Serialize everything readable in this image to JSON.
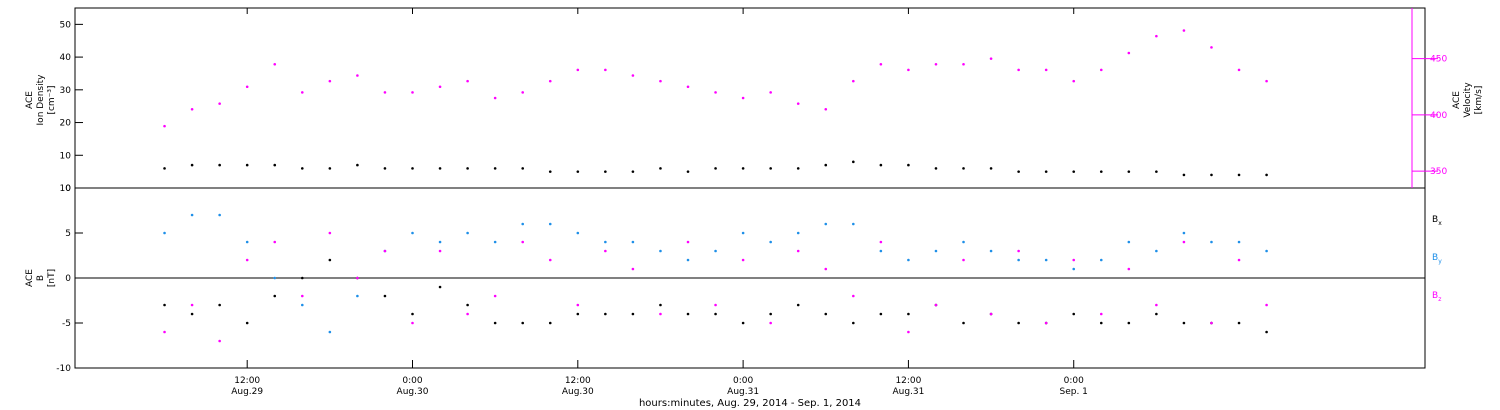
{
  "chart_data": [
    {
      "type": "scatter",
      "panel": "top",
      "left_axis": {
        "label_lines": [
          "ACE",
          "Ion Density",
          "[cm⁻³]"
        ],
        "ylim": [
          0,
          55
        ],
        "ticks": [
          0,
          10,
          20,
          30,
          40,
          50
        ],
        "color": "#000000"
      },
      "right_axis": {
        "label_lines": [
          "ACE",
          "Velocity",
          "[km/s]"
        ],
        "ylim": [
          335,
          495
        ],
        "ticks": [
          350,
          400,
          450
        ],
        "color": "#ff00ff"
      },
      "series": [
        {
          "axis": "left",
          "color": "#000000",
          "x_hours": [
            0,
            2,
            4,
            6,
            8,
            10,
            12,
            14,
            16,
            18,
            20,
            22,
            24,
            26,
            28,
            30,
            32,
            34,
            36,
            38,
            40,
            42,
            44,
            46,
            48,
            50,
            52,
            54,
            56,
            58,
            60,
            62,
            64,
            66,
            68,
            70,
            72,
            74,
            76,
            78,
            80
          ],
          "values": [
            6,
            7,
            7,
            7,
            7,
            6,
            6,
            7,
            6,
            6,
            6,
            6,
            6,
            6,
            5,
            5,
            5,
            5,
            6,
            5,
            6,
            6,
            6,
            6,
            7,
            8,
            7,
            7,
            6,
            6,
            6,
            5,
            5,
            5,
            5,
            5,
            5,
            4,
            4,
            4,
            4
          ]
        },
        {
          "axis": "right",
          "color": "#ff00ff",
          "x_hours": [
            0,
            2,
            4,
            6,
            8,
            10,
            12,
            14,
            16,
            18,
            20,
            22,
            24,
            26,
            28,
            30,
            32,
            34,
            36,
            38,
            40,
            42,
            44,
            46,
            48,
            50,
            52,
            54,
            56,
            58,
            60,
            62,
            64,
            66,
            68,
            70,
            72,
            74,
            76,
            78,
            80
          ],
          "values": [
            390,
            405,
            410,
            425,
            445,
            420,
            430,
            435,
            420,
            420,
            425,
            430,
            415,
            420,
            430,
            440,
            440,
            435,
            430,
            425,
            420,
            415,
            420,
            410,
            405,
            430,
            445,
            440,
            445,
            445,
            450,
            440,
            440,
            430,
            440,
            455,
            470,
            475,
            460,
            440,
            430
          ]
        }
      ]
    },
    {
      "type": "scatter",
      "panel": "bottom",
      "left_axis": {
        "label_lines": [
          "ACE",
          "B",
          "[nT]"
        ],
        "ylim": [
          -10,
          10
        ],
        "ticks": [
          -10,
          -5,
          0,
          5,
          10
        ],
        "zero_line": true
      },
      "series": [
        {
          "name": "Bx",
          "color": "#000000",
          "x_hours": [
            0,
            2,
            4,
            6,
            8,
            10,
            12,
            14,
            16,
            18,
            20,
            22,
            24,
            26,
            28,
            30,
            32,
            34,
            36,
            38,
            40,
            42,
            44,
            46,
            48,
            50,
            52,
            54,
            56,
            58,
            60,
            62,
            64,
            66,
            68,
            70,
            72,
            74,
            76,
            78,
            80
          ],
          "values": [
            -3,
            -4,
            -3,
            -5,
            -2,
            0,
            2,
            0,
            -2,
            -4,
            -1,
            -3,
            -5,
            -5,
            -5,
            -4,
            -4,
            -4,
            -3,
            -4,
            -4,
            -5,
            -4,
            -3,
            -4,
            -5,
            -4,
            -4,
            -3,
            -5,
            -4,
            -5,
            -5,
            -4,
            -5,
            -5,
            -4,
            -5,
            -5,
            -5,
            -6
          ]
        },
        {
          "name": "By",
          "color": "#1e8fe8",
          "x_hours": [
            0,
            2,
            4,
            6,
            8,
            10,
            12,
            14,
            16,
            18,
            20,
            22,
            24,
            26,
            28,
            30,
            32,
            34,
            36,
            38,
            40,
            42,
            44,
            46,
            48,
            50,
            52,
            54,
            56,
            58,
            60,
            62,
            64,
            66,
            68,
            70,
            72,
            74,
            76,
            78,
            80
          ],
          "values": [
            5,
            7,
            7,
            4,
            0,
            -3,
            -6,
            -2,
            3,
            5,
            4,
            5,
            4,
            6,
            6,
            5,
            4,
            4,
            3,
            2,
            3,
            5,
            4,
            5,
            6,
            6,
            3,
            2,
            3,
            4,
            3,
            2,
            2,
            1,
            2,
            4,
            3,
            5,
            4,
            4,
            3
          ]
        },
        {
          "name": "Bz",
          "color": "#ff00ff",
          "x_hours": [
            0,
            2,
            4,
            6,
            8,
            10,
            12,
            14,
            16,
            18,
            20,
            22,
            24,
            26,
            28,
            30,
            32,
            34,
            36,
            38,
            40,
            42,
            44,
            46,
            48,
            50,
            52,
            54,
            56,
            58,
            60,
            62,
            64,
            66,
            68,
            70,
            72,
            74,
            76,
            78,
            80
          ],
          "values": [
            -6,
            -3,
            -7,
            2,
            4,
            -2,
            5,
            0,
            3,
            -5,
            3,
            -4,
            -2,
            4,
            2,
            -3,
            3,
            1,
            -4,
            4,
            -3,
            2,
            -5,
            3,
            1,
            -2,
            4,
            -6,
            -3,
            2,
            -4,
            3,
            -5,
            2,
            -4,
            1,
            -3,
            4,
            -5,
            2,
            -3
          ]
        }
      ],
      "legend": {
        "placement": "right",
        "entries": [
          {
            "main": "B",
            "sub": "x",
            "color": "#000000"
          },
          {
            "main": "B",
            "sub": "y",
            "color": "#1e8fe8"
          },
          {
            "main": "B",
            "sub": "z",
            "color": "#ff00ff"
          }
        ]
      }
    }
  ],
  "x_axis": {
    "range_hours": [
      -6.5,
      91.5
    ],
    "ticks": [
      {
        "hours": 6,
        "time": "12:00",
        "date": "Aug.29"
      },
      {
        "hours": 18,
        "time": "0:00",
        "date": "Aug.30"
      },
      {
        "hours": 30,
        "time": "12:00",
        "date": "Aug.30"
      },
      {
        "hours": 42,
        "time": "0:00",
        "date": "Aug.31"
      },
      {
        "hours": 54,
        "time": "12:00",
        "date": "Aug.31"
      },
      {
        "hours": 66,
        "time": "0:00",
        "date": "Sep. 1"
      }
    ],
    "label": "hours:minutes, Aug. 29, 2014 - Sep.  1, 2014"
  }
}
